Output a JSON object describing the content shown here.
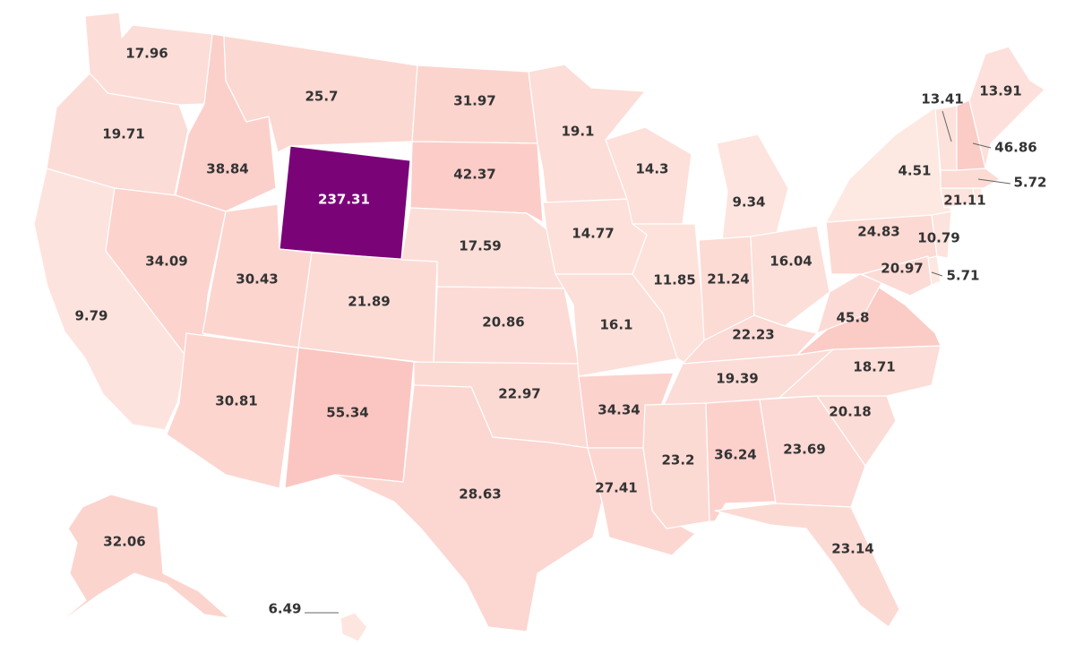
{
  "map": {
    "type": "choropleth",
    "region": "United States",
    "color_scale": {
      "low": "#fde9e3",
      "mid": "#fbc3be",
      "high": "#7a0177"
    },
    "outline_color": "#ffffff",
    "label_color": "#333333",
    "states": [
      {
        "name": "WA",
        "value": 17.96
      },
      {
        "name": "OR",
        "value": 19.71
      },
      {
        "name": "CA",
        "value": 9.79
      },
      {
        "name": "ID",
        "value": 38.84
      },
      {
        "name": "NV",
        "value": 34.09
      },
      {
        "name": "MT",
        "value": 25.7
      },
      {
        "name": "WY",
        "value": 237.31
      },
      {
        "name": "UT",
        "value": 30.43
      },
      {
        "name": "AZ",
        "value": 30.81
      },
      {
        "name": "CO",
        "value": 21.89
      },
      {
        "name": "NM",
        "value": 55.34
      },
      {
        "name": "ND",
        "value": 31.97
      },
      {
        "name": "SD",
        "value": 42.37
      },
      {
        "name": "NE",
        "value": 17.59
      },
      {
        "name": "KS",
        "value": 20.86
      },
      {
        "name": "OK",
        "value": 22.97
      },
      {
        "name": "TX",
        "value": 28.63
      },
      {
        "name": "MN",
        "value": 19.1
      },
      {
        "name": "IA",
        "value": 14.77
      },
      {
        "name": "MO",
        "value": 16.1
      },
      {
        "name": "AR",
        "value": 34.34
      },
      {
        "name": "LA",
        "value": 27.41
      },
      {
        "name": "WI",
        "value": 14.3
      },
      {
        "name": "IL",
        "value": 11.85
      },
      {
        "name": "MI",
        "value": 9.34
      },
      {
        "name": "IN",
        "value": 21.24
      },
      {
        "name": "OH",
        "value": 16.04
      },
      {
        "name": "KY",
        "value": 22.23
      },
      {
        "name": "TN",
        "value": 19.39
      },
      {
        "name": "MS",
        "value": 23.2
      },
      {
        "name": "AL",
        "value": 36.24
      },
      {
        "name": "GA",
        "value": 23.69
      },
      {
        "name": "FL",
        "value": 23.14
      },
      {
        "name": "SC",
        "value": 20.18
      },
      {
        "name": "NC",
        "value": 18.71
      },
      {
        "name": "VA",
        "value": 45.8
      },
      {
        "name": "WV",
        "value": 20.97
      },
      {
        "name": "PA",
        "value": 24.83
      },
      {
        "name": "NY",
        "value": 4.51
      },
      {
        "name": "VT",
        "value": 13.41
      },
      {
        "name": "NH",
        "value": 46.86
      },
      {
        "name": "ME",
        "value": 13.91
      },
      {
        "name": "MA",
        "value": 21.11
      },
      {
        "name": "RI",
        "value": 5.72
      },
      {
        "name": "CT",
        "value": 10.79
      },
      {
        "name": "NJ",
        "value": 10.79
      },
      {
        "name": "DE",
        "value": 5.71
      },
      {
        "name": "MD",
        "value": 20.97
      },
      {
        "name": "AK",
        "value": 32.06
      },
      {
        "name": "HI",
        "value": 6.49
      }
    ]
  },
  "labels": {
    "WA": "17.96",
    "OR": "19.71",
    "CA": "9.79",
    "ID": "38.84",
    "NV": "34.09",
    "MT": "25.7",
    "WY": "237.31",
    "UT": "30.43",
    "AZ": "30.81",
    "CO": "21.89",
    "NM": "55.34",
    "ND": "31.97",
    "SD": "42.37",
    "NE": "17.59",
    "KS": "20.86",
    "OK": "22.97",
    "TX": "28.63",
    "MN": "19.1",
    "IA": "14.77",
    "MO": "16.1",
    "AR": "34.34",
    "LA": "27.41",
    "WI": "14.3",
    "IL": "11.85",
    "MI": "9.34",
    "IN": "21.24",
    "OH": "16.04",
    "KY": "22.23",
    "TN": "19.39",
    "MS": "23.2",
    "AL": "36.24",
    "GA": "23.69",
    "FL": "23.14",
    "SC": "20.18",
    "NC": "18.71",
    "VA": "45.8",
    "WV": "20.97",
    "PA": "24.83",
    "NY": "4.51",
    "VT": "13.41",
    "NH": "46.86",
    "ME": "13.91",
    "MA": "21.11",
    "RI": "5.72",
    "NJ": "10.79",
    "DE": "5.71",
    "AK": "32.06",
    "HI": "6.49"
  }
}
